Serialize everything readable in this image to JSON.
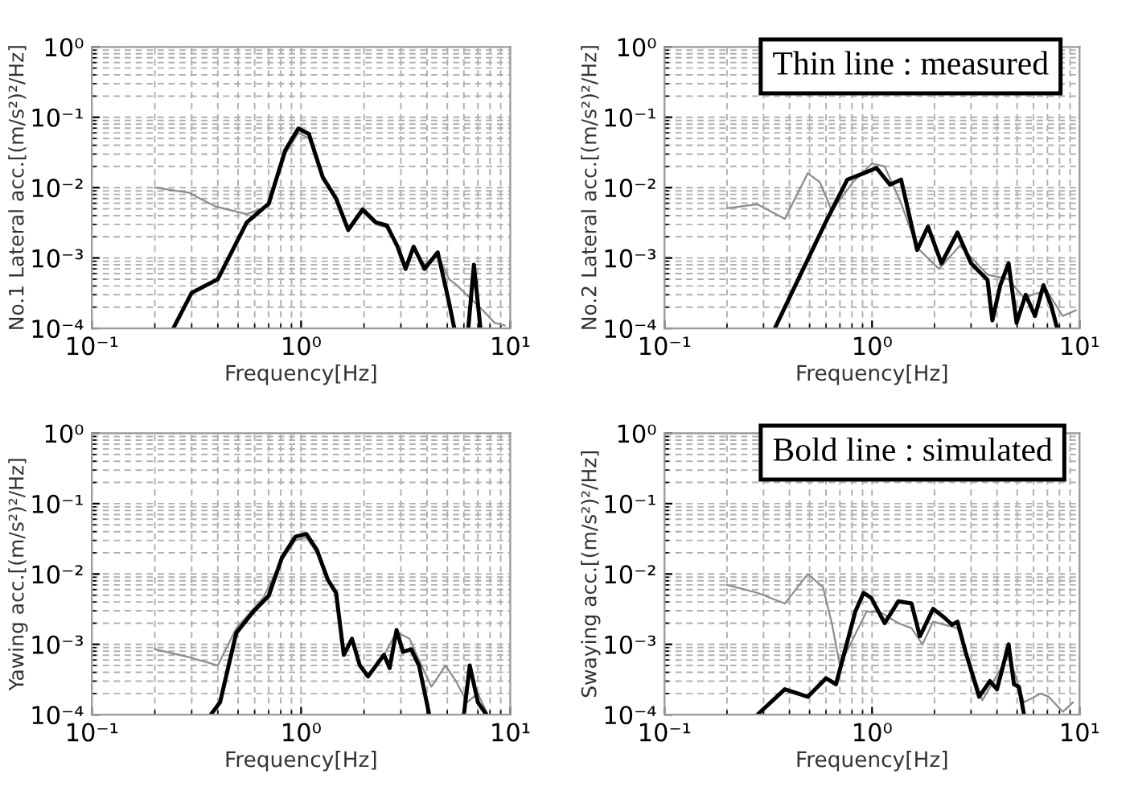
{
  "chart_data": [
    {
      "type": "line",
      "xlabel": "Frequency[Hz]",
      "ylabel": "No.1 Lateral acc.[(m/s²)²/Hz]",
      "xlim": [
        0.1,
        10
      ],
      "ylim": [
        0.0001,
        1
      ],
      "log": "xy",
      "grid": true,
      "xticks": [
        {
          "value": 0.1,
          "label": "10⁻¹"
        },
        {
          "value": 1,
          "label": "10⁰"
        },
        {
          "value": 10,
          "label": "10¹"
        }
      ],
      "yticks": [
        {
          "value": 0.0001,
          "label": "10⁻⁴"
        },
        {
          "value": 0.001,
          "label": "10⁻³"
        },
        {
          "value": 0.01,
          "label": "10⁻²"
        },
        {
          "value": 0.1,
          "label": "10⁻¹"
        },
        {
          "value": 1,
          "label": "10⁰"
        }
      ],
      "series": [
        {
          "color": "#8c8c8c",
          "x": [
            0.2,
            0.29,
            0.39,
            0.55,
            0.7,
            0.84,
            0.97,
            1.09,
            1.27,
            1.47,
            1.68,
            1.97,
            2.28,
            2.57,
            2.89,
            3.16,
            3.45,
            3.89,
            4.5,
            5.1,
            5.5,
            6.6,
            7.4,
            8.4,
            9.4
          ],
          "values": [
            0.01,
            0.0085,
            0.0054,
            0.0042,
            0.0055,
            0.03,
            0.06,
            0.05,
            0.013,
            0.007,
            0.0025,
            0.0045,
            0.003,
            0.0027,
            0.0014,
            0.0008,
            0.0014,
            0.0008,
            0.0011,
            0.0005,
            0.00042,
            0.00025,
            0.00018,
            0.00012,
            0.00011
          ]
        },
        {
          "color": "#000000",
          "x": [
            0.245,
            0.3,
            0.4,
            0.55,
            0.7,
            0.84,
            0.97,
            1.09,
            1.27,
            1.47,
            1.68,
            1.97,
            2.28,
            2.57,
            2.89,
            3.16,
            3.45,
            3.89,
            4.5,
            5.07,
            5.4,
            5.9,
            6.3,
            6.7,
            7.2
          ],
          "values": [
            0.0001,
            0.00032,
            0.0005,
            0.0032,
            0.0059,
            0.034,
            0.069,
            0.058,
            0.014,
            0.007,
            0.0025,
            0.0049,
            0.0032,
            0.0029,
            0.00145,
            0.0007,
            0.00145,
            0.0007,
            0.0012,
            0.00025,
            0.0001,
            null,
            0.0001,
            0.0008,
            0.0001
          ]
        }
      ]
    },
    {
      "type": "line",
      "xlabel": "Frequency[Hz]",
      "ylabel": "No.2 Lateral acc.[(m/s²)²/Hz]",
      "xlim": [
        0.1,
        10
      ],
      "ylim": [
        0.0001,
        1
      ],
      "log": "xy",
      "grid": true,
      "xticks": [
        {
          "value": 0.1,
          "label": "10⁻¹"
        },
        {
          "value": 1,
          "label": "10⁰"
        },
        {
          "value": 10,
          "label": "10¹"
        }
      ],
      "yticks": [
        {
          "value": 0.0001,
          "label": "10⁻⁴"
        },
        {
          "value": 0.001,
          "label": "10⁻³"
        },
        {
          "value": 0.01,
          "label": "10⁻²"
        },
        {
          "value": 0.1,
          "label": "10⁻¹"
        },
        {
          "value": 1,
          "label": "10⁰"
        }
      ],
      "annotations": [
        "Thin line : measured"
      ],
      "series": [
        {
          "color": "#8c8c8c",
          "x": [
            0.2,
            0.28,
            0.38,
            0.49,
            0.56,
            0.64,
            0.81,
            1.0,
            1.15,
            1.38,
            1.65,
            2.1,
            2.65,
            3.6,
            4.55,
            5.4,
            6.9,
            8.3,
            9.6
          ],
          "values": [
            0.0051,
            0.0058,
            0.0036,
            0.016,
            0.012,
            0.0047,
            0.012,
            0.022,
            0.02,
            0.006,
            0.0014,
            0.0007,
            0.0015,
            0.00058,
            0.0005,
            0.00027,
            0.00035,
            0.00015,
            0.00018
          ]
        },
        {
          "color": "#000000",
          "x": [
            0.34,
            0.44,
            0.6,
            0.76,
            0.91,
            1.05,
            1.22,
            1.38,
            1.65,
            1.86,
            2.16,
            2.58,
            3.0,
            3.6,
            3.8,
            4.15,
            4.55,
            4.97,
            5.5,
            6.1,
            6.7,
            7.3,
            7.8
          ],
          "values": [
            0.0001,
            0.00049,
            0.0033,
            0.013,
            0.016,
            0.019,
            0.011,
            0.013,
            0.0013,
            0.0028,
            0.00084,
            0.0023,
            0.00084,
            0.00049,
            0.00013,
            0.00041,
            0.00084,
            0.00012,
            0.0003,
            0.00015,
            0.00041,
            0.00021,
            0.0001
          ]
        }
      ]
    },
    {
      "type": "line",
      "xlabel": "Frequency[Hz]",
      "ylabel": "Yawing acc.[(m/s²)²/Hz]",
      "xlim": [
        0.1,
        10
      ],
      "ylim": [
        0.0001,
        1
      ],
      "log": "xy",
      "grid": true,
      "xticks": [
        {
          "value": 0.1,
          "label": "10⁻¹"
        },
        {
          "value": 1,
          "label": "10⁰"
        },
        {
          "value": 10,
          "label": "10¹"
        }
      ],
      "yticks": [
        {
          "value": 0.0001,
          "label": "10⁻⁴"
        },
        {
          "value": 0.001,
          "label": "10⁻³"
        },
        {
          "value": 0.01,
          "label": "10⁻²"
        },
        {
          "value": 0.1,
          "label": "10⁻¹"
        },
        {
          "value": 1,
          "label": "10⁰"
        }
      ],
      "series": [
        {
          "color": "#8c8c8c",
          "x": [
            0.2,
            0.29,
            0.4,
            0.49,
            0.66,
            0.81,
            0.94,
            1.06,
            1.19,
            1.34,
            1.47,
            1.6,
            1.75,
            1.91,
            2.09,
            2.49,
            2.86,
            3.3,
            3.66,
            4.2,
            4.9,
            5.5,
            6.2,
            7.0,
            7.8
          ],
          "values": [
            0.00085,
            0.00066,
            0.0005,
            0.0017,
            0.0046,
            0.016,
            0.03,
            0.033,
            0.02,
            0.0078,
            0.005,
            0.0008,
            0.0011,
            0.0005,
            0.00035,
            0.0007,
            0.0015,
            0.0012,
            0.0006,
            0.00025,
            0.0005,
            0.0003,
            0.00015,
            0.0002,
            0.0001
          ]
        },
        {
          "color": "#000000",
          "x": [
            0.37,
            0.41,
            0.49,
            0.59,
            0.7,
            0.81,
            0.94,
            1.06,
            1.19,
            1.34,
            1.47,
            1.6,
            1.75,
            1.91,
            2.09,
            2.49,
            2.65,
            2.86,
            3.07,
            3.36,
            3.66,
            4.1,
            5.0,
            6.0,
            6.4,
            7.0,
            7.7
          ],
          "values": [
            0.0001,
            0.00015,
            0.00145,
            0.0029,
            0.0049,
            0.017,
            0.034,
            0.037,
            0.022,
            0.0084,
            0.0054,
            0.00071,
            0.0012,
            0.0005,
            0.00035,
            0.00071,
            0.00046,
            0.0016,
            0.00078,
            0.00085,
            0.0005,
            0.0001,
            null,
            0.0001,
            0.0005,
            0.00015,
            0.0001
          ]
        }
      ]
    },
    {
      "type": "line",
      "xlabel": "Frequency[Hz]",
      "ylabel": "Swaying acc.[(m/s²)²/Hz]",
      "xlim": [
        0.1,
        10
      ],
      "ylim": [
        0.0001,
        1
      ],
      "log": "xy",
      "grid": true,
      "xticks": [
        {
          "value": 0.1,
          "label": "10⁻¹"
        },
        {
          "value": 1,
          "label": "10⁰"
        },
        {
          "value": 10,
          "label": "10¹"
        }
      ],
      "yticks": [
        {
          "value": 0.0001,
          "label": "10⁻⁴"
        },
        {
          "value": 0.001,
          "label": "10⁻³"
        },
        {
          "value": 0.01,
          "label": "10⁻²"
        },
        {
          "value": 0.1,
          "label": "10⁻¹"
        },
        {
          "value": 1,
          "label": "10⁰"
        }
      ],
      "annotations": [
        "Bold line : simulated"
      ],
      "series": [
        {
          "color": "#8c8c8c",
          "x": [
            0.2,
            0.28,
            0.38,
            0.49,
            0.58,
            0.64,
            0.7,
            0.81,
            0.94,
            1.09,
            1.34,
            1.55,
            1.75,
            1.97,
            2.58,
            2.9,
            3.4,
            4.55,
            5.4,
            6.5,
            7.1,
            8.3,
            9.3
          ],
          "values": [
            0.007,
            0.0054,
            0.0038,
            0.01,
            0.0065,
            0.002,
            0.0005,
            0.0012,
            0.0029,
            0.0029,
            0.002,
            0.0017,
            0.001,
            0.0021,
            0.0017,
            0.00066,
            0.00016,
            0.0007,
            0.00015,
            0.0002,
            0.00018,
            0.00011,
            0.00015
          ]
        },
        {
          "color": "#000000",
          "x": [
            0.28,
            0.38,
            0.49,
            0.6,
            0.67,
            0.83,
            0.91,
            0.99,
            1.15,
            1.34,
            1.55,
            1.7,
            1.97,
            2.23,
            2.43,
            2.58,
            2.82,
            3.28,
            3.7,
            4.0,
            4.55,
            4.83,
            5.1,
            5.4
          ],
          "values": [
            0.0001,
            0.00023,
            0.00018,
            0.00033,
            0.00027,
            0.0029,
            0.0054,
            0.0046,
            0.002,
            0.0041,
            0.0038,
            0.0013,
            0.0032,
            0.0024,
            0.0019,
            0.0021,
            0.00079,
            0.00018,
            0.0003,
            0.00023,
            0.001,
            0.00027,
            0.00025,
            0.0001
          ]
        }
      ]
    }
  ]
}
